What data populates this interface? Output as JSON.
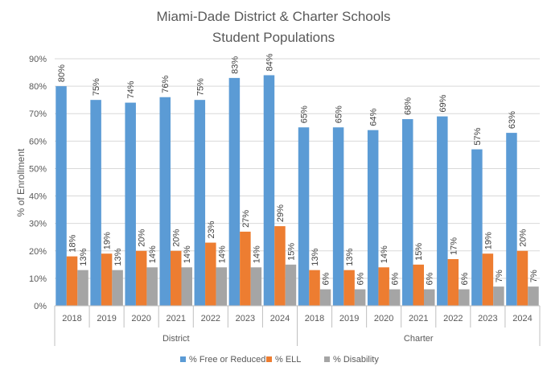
{
  "chart_data": {
    "type": "bar",
    "title": "Miami-Dade District & Charter Schools",
    "subtitle": "Student Populations",
    "xlabel": "",
    "ylabel": "% of Enrollment",
    "ylim": [
      0,
      90
    ],
    "y_ticks": [
      "0%",
      "10%",
      "20%",
      "30%",
      "40%",
      "50%",
      "60%",
      "70%",
      "80%",
      "90%"
    ],
    "grid": true,
    "legend_position": "bottom",
    "groups": [
      {
        "name": "District",
        "categories": [
          "2018",
          "2019",
          "2020",
          "2021",
          "2022",
          "2023",
          "2024"
        ]
      },
      {
        "name": "Charter",
        "categories": [
          "2018",
          "2019",
          "2020",
          "2021",
          "2022",
          "2023",
          "2024"
        ]
      }
    ],
    "series": [
      {
        "name": "% Free or Reduced",
        "color": "#5B9BD5",
        "values": [
          80,
          75,
          74,
          76,
          75,
          83,
          84,
          65,
          65,
          64,
          68,
          69,
          57,
          63
        ],
        "labels": [
          "80%",
          "75%",
          "74%",
          "76%",
          "75%",
          "83%",
          "84%",
          "65%",
          "65%",
          "64%",
          "68%",
          "69%",
          "57%",
          "63%"
        ]
      },
      {
        "name": "% ELL",
        "color": "#ED7D31",
        "values": [
          18,
          19,
          20,
          20,
          23,
          27,
          29,
          13,
          13,
          14,
          15,
          17,
          19,
          20
        ],
        "labels": [
          "18%",
          "19%",
          "20%",
          "20%",
          "23%",
          "27%",
          "29%",
          "13%",
          "13%",
          "14%",
          "15%",
          "17%",
          "19%",
          "20%"
        ]
      },
      {
        "name": "% Disability",
        "color": "#A5A5A5",
        "values": [
          13,
          13,
          14,
          14,
          14,
          14,
          15,
          6,
          6,
          6,
          6,
          6,
          7,
          7
        ],
        "labels": [
          "13%",
          "13%",
          "14%",
          "14%",
          "14%",
          "14%",
          "15%",
          "6%",
          "6%",
          "6%",
          "6%",
          "6%",
          "7%",
          "7%"
        ]
      }
    ]
  }
}
